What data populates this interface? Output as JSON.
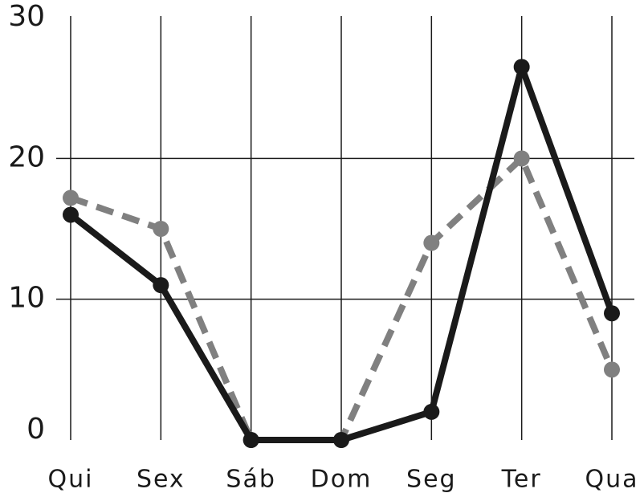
{
  "chart_data": {
    "type": "line",
    "categories": [
      "Qui",
      "Sex",
      "Sáb",
      "Dom",
      "Seg",
      "Ter",
      "Qua"
    ],
    "series": [
      {
        "color": "#1a1a1a",
        "dashed": false,
        "values": [
          16,
          11,
          0,
          0,
          2,
          26.5,
          9
        ]
      },
      {
        "color": "#808080",
        "dashed": true,
        "values": [
          17.2,
          15,
          0,
          0,
          14,
          20,
          5
        ]
      }
    ],
    "ylim": [
      0,
      30
    ],
    "yticks": [
      0,
      10,
      20,
      30
    ],
    "grid": true
  }
}
